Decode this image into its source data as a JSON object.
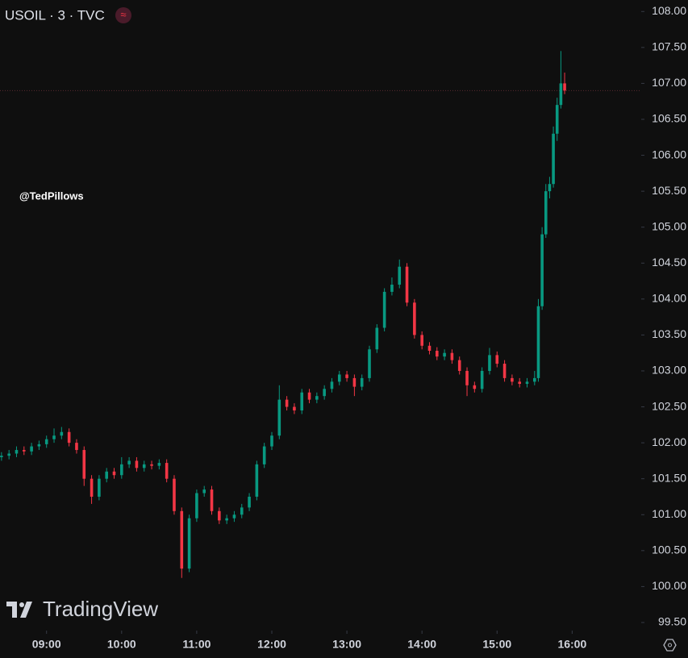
{
  "header": {
    "symbol": "USOIL · 3 · TVC",
    "watermark": "@TedPillows",
    "logo": "TradingView"
  },
  "chart_data": {
    "type": "candlestick",
    "up_color": "#089981",
    "down_color": "#f23645",
    "xlim": [
      8.38,
      16.92
    ],
    "ylim": [
      99.41,
      108.16
    ],
    "xticks": [
      {
        "value": 9,
        "label": "09:00"
      },
      {
        "value": 10,
        "label": "10:00"
      },
      {
        "value": 11,
        "label": "11:00"
      },
      {
        "value": 12,
        "label": "12:00"
      },
      {
        "value": 13,
        "label": "13:00"
      },
      {
        "value": 14,
        "label": "14:00"
      },
      {
        "value": 15,
        "label": "15:00"
      },
      {
        "value": 16,
        "label": "16:00"
      }
    ],
    "yticks": [
      {
        "value": 99.5,
        "label": "99.50"
      },
      {
        "value": 100,
        "label": "100.00"
      },
      {
        "value": 100.5,
        "label": "100.50"
      },
      {
        "value": 101,
        "label": "101.00"
      },
      {
        "value": 101.5,
        "label": "101.50"
      },
      {
        "value": 102,
        "label": "102.00"
      },
      {
        "value": 102.5,
        "label": "102.50"
      },
      {
        "value": 103,
        "label": "103.00"
      },
      {
        "value": 103.5,
        "label": "103.50"
      },
      {
        "value": 104,
        "label": "104.00"
      },
      {
        "value": 104.5,
        "label": "104.50"
      },
      {
        "value": 105,
        "label": "105.00"
      },
      {
        "value": 105.5,
        "label": "105.50"
      },
      {
        "value": 106,
        "label": "106.00"
      },
      {
        "value": 106.5,
        "label": "106.50"
      },
      {
        "value": 107,
        "label": "107.00"
      },
      {
        "value": 107.5,
        "label": "107.50"
      },
      {
        "value": 108,
        "label": "108.00"
      }
    ],
    "x": [
      8.4,
      8.5,
      8.6,
      8.7,
      8.8,
      8.9,
      9.0,
      9.1,
      9.2,
      9.3,
      9.4,
      9.5,
      9.6,
      9.7,
      9.8,
      9.9,
      10.0,
      10.1,
      10.2,
      10.3,
      10.4,
      10.5,
      10.6,
      10.7,
      10.8,
      10.9,
      11.0,
      11.1,
      11.2,
      11.3,
      11.4,
      11.5,
      11.6,
      11.7,
      11.8,
      11.9,
      12.0,
      12.1,
      12.2,
      12.3,
      12.4,
      12.5,
      12.6,
      12.7,
      12.8,
      12.9,
      13.0,
      13.1,
      13.2,
      13.3,
      13.4,
      13.5,
      13.6,
      13.7,
      13.8,
      13.9,
      14.0,
      14.1,
      14.2,
      14.3,
      14.4,
      14.5,
      14.6,
      14.7,
      14.8,
      14.9,
      15.0,
      15.1,
      15.2,
      15.3,
      15.4,
      15.5,
      15.55,
      15.6,
      15.65,
      15.7,
      15.75,
      15.8,
      15.85,
      15.9
    ],
    "open": [
      101.8,
      101.82,
      101.85,
      101.9,
      101.88,
      101.95,
      101.98,
      102.05,
      102.1,
      102.15,
      102.0,
      101.9,
      101.5,
      101.25,
      101.5,
      101.6,
      101.55,
      101.7,
      101.75,
      101.65,
      101.7,
      101.68,
      101.72,
      101.5,
      101.05,
      100.25,
      100.95,
      101.3,
      101.35,
      101.05,
      100.92,
      100.95,
      101.0,
      101.1,
      101.25,
      101.7,
      101.95,
      102.1,
      102.6,
      102.5,
      102.45,
      102.7,
      102.6,
      102.65,
      102.75,
      102.85,
      102.95,
      102.9,
      102.78,
      102.9,
      103.3,
      103.6,
      104.1,
      104.2,
      104.45,
      103.95,
      103.5,
      103.35,
      103.28,
      103.2,
      103.25,
      103.15,
      103.0,
      102.8,
      102.75,
      103.0,
      103.22,
      103.1,
      102.9,
      102.85,
      102.82,
      102.85,
      102.9,
      103.9,
      104.9,
      105.5,
      105.6,
      106.3,
      106.7,
      107.0
    ],
    "high": [
      101.87,
      101.9,
      101.95,
      101.95,
      102.0,
      102.03,
      102.1,
      102.2,
      102.22,
      102.2,
      102.05,
      101.95,
      101.55,
      101.55,
      101.65,
      101.65,
      101.8,
      101.8,
      101.8,
      101.75,
      101.75,
      101.77,
      101.77,
      101.55,
      101.1,
      101.0,
      101.35,
      101.4,
      101.4,
      101.1,
      101.0,
      101.05,
      101.15,
      101.3,
      101.75,
      102.0,
      102.15,
      102.8,
      102.65,
      102.55,
      102.75,
      102.75,
      102.7,
      102.8,
      102.9,
      103.0,
      103.0,
      102.95,
      102.95,
      103.35,
      103.65,
      104.15,
      104.3,
      104.55,
      104.5,
      104.0,
      103.55,
      103.4,
      103.33,
      103.3,
      103.3,
      103.2,
      103.05,
      102.85,
      103.05,
      103.32,
      103.27,
      103.15,
      102.95,
      102.9,
      102.9,
      103.0,
      104.0,
      105.0,
      105.6,
      105.7,
      106.4,
      106.8,
      107.45,
      107.15
    ],
    "low": [
      101.75,
      101.77,
      101.8,
      101.83,
      101.83,
      101.9,
      101.93,
      102.0,
      102.05,
      101.95,
      101.85,
      101.4,
      101.15,
      101.2,
      101.45,
      101.5,
      101.5,
      101.65,
      101.6,
      101.6,
      101.63,
      101.63,
      101.45,
      101.0,
      100.12,
      100.2,
      100.9,
      101.25,
      101.0,
      100.87,
      100.87,
      100.9,
      100.95,
      101.05,
      101.2,
      101.65,
      101.9,
      102.05,
      102.45,
      102.4,
      102.4,
      102.55,
      102.55,
      102.6,
      102.7,
      102.8,
      102.85,
      102.65,
      102.73,
      102.85,
      103.25,
      103.55,
      104.05,
      104.15,
      103.9,
      103.45,
      103.3,
      103.23,
      103.15,
      103.15,
      103.1,
      102.95,
      102.65,
      102.7,
      102.7,
      102.95,
      103.05,
      102.85,
      102.8,
      102.77,
      102.77,
      102.8,
      102.85,
      103.85,
      104.85,
      105.4,
      105.55,
      106.2,
      106.65,
      106.85
    ],
    "close": [
      101.82,
      101.85,
      101.9,
      101.88,
      101.95,
      101.98,
      102.05,
      102.1,
      102.15,
      102.0,
      101.9,
      101.5,
      101.25,
      101.5,
      101.6,
      101.55,
      101.7,
      101.75,
      101.65,
      101.7,
      101.68,
      101.72,
      101.5,
      101.05,
      100.25,
      100.95,
      101.3,
      101.35,
      101.05,
      100.92,
      100.95,
      101.0,
      101.1,
      101.25,
      101.7,
      101.95,
      102.1,
      102.6,
      102.5,
      102.45,
      102.7,
      102.6,
      102.65,
      102.75,
      102.85,
      102.95,
      102.9,
      102.78,
      102.9,
      103.3,
      103.6,
      104.1,
      104.2,
      104.45,
      103.95,
      103.5,
      103.35,
      103.28,
      103.2,
      103.25,
      103.15,
      103.0,
      102.8,
      102.75,
      103.0,
      103.22,
      103.1,
      102.9,
      102.85,
      102.82,
      102.85,
      102.9,
      103.9,
      104.9,
      105.5,
      105.6,
      106.3,
      106.7,
      107.0,
      106.9
    ]
  }
}
